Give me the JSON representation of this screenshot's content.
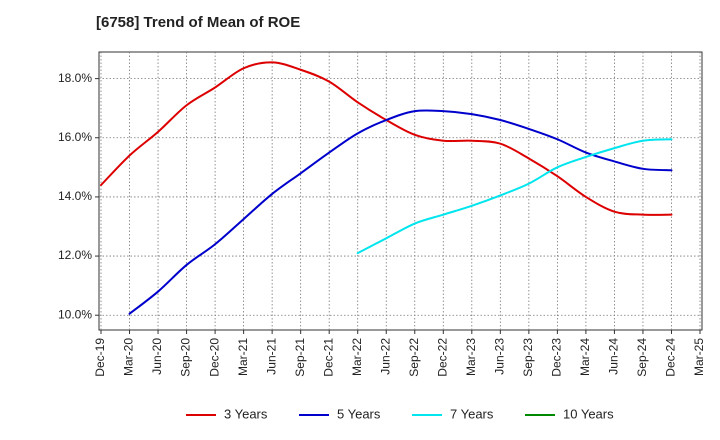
{
  "chart_data": {
    "type": "line",
    "title": "[6758]  Trend of Mean of ROE",
    "xlabel": "",
    "ylabel": "",
    "x": [
      "Dec-19",
      "Mar-20",
      "Jun-20",
      "Sep-20",
      "Dec-20",
      "Mar-21",
      "Jun-21",
      "Sep-21",
      "Dec-21",
      "Mar-22",
      "Jun-22",
      "Sep-22",
      "Dec-22",
      "Mar-23",
      "Jun-23",
      "Sep-23",
      "Dec-23",
      "Mar-24",
      "Jun-24",
      "Sep-24",
      "Dec-24",
      "Mar-25"
    ],
    "yticks": [
      "10.0%",
      "12.0%",
      "14.0%",
      "16.0%",
      "18.0%"
    ],
    "ylim": [
      9.5,
      18.9
    ],
    "grid": true,
    "legend_position": "bottom",
    "series": [
      {
        "name": "3 Years",
        "color": "#dd0000",
        "values": [
          14.4,
          15.4,
          16.2,
          17.1,
          17.7,
          18.35,
          18.55,
          18.3,
          17.9,
          17.2,
          16.6,
          16.1,
          15.9,
          15.9,
          15.8,
          15.3,
          14.7,
          14.0,
          13.5,
          13.4,
          13.4,
          null
        ]
      },
      {
        "name": "5 Years",
        "color": "#0000cc",
        "values": [
          null,
          10.05,
          10.8,
          11.7,
          12.4,
          13.25,
          14.1,
          14.8,
          15.5,
          16.15,
          16.6,
          16.9,
          16.9,
          16.8,
          16.6,
          16.3,
          15.95,
          15.5,
          15.2,
          14.95,
          14.9,
          null
        ]
      },
      {
        "name": "7 Years",
        "color": "#00e5ee",
        "values": [
          null,
          null,
          null,
          null,
          null,
          null,
          null,
          null,
          null,
          12.1,
          12.6,
          13.1,
          13.4,
          13.7,
          14.05,
          14.45,
          15.0,
          15.35,
          15.65,
          15.9,
          15.95,
          null
        ]
      },
      {
        "name": "10 Years",
        "color": "#008800",
        "values": [
          null,
          null,
          null,
          null,
          null,
          null,
          null,
          null,
          null,
          null,
          null,
          null,
          null,
          null,
          null,
          null,
          null,
          null,
          null,
          null,
          null,
          null
        ]
      }
    ]
  }
}
